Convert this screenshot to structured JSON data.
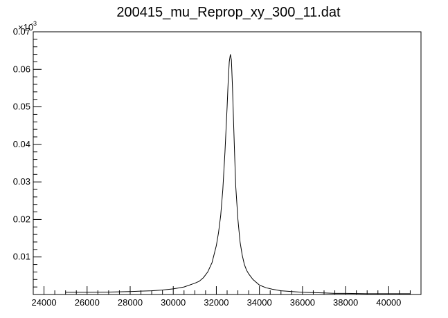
{
  "chart_data": {
    "type": "line",
    "title": "200415_mu_Reprop_xy_300_11.dat",
    "xlabel": "",
    "ylabel": "",
    "xlim": [
      23500,
      41500
    ],
    "ylim": [
      0,
      0.07
    ],
    "y_multiplier": {
      "base": "×10",
      "exponent": "-3"
    },
    "grid": false,
    "legend": "none",
    "x_ticks": [
      24000,
      26000,
      28000,
      30000,
      32000,
      34000,
      36000,
      38000,
      40000
    ],
    "x_tick_labels": [
      "24000",
      "26000",
      "28000",
      "30000",
      "32000",
      "34000",
      "36000",
      "38000",
      "40000"
    ],
    "y_ticks": [
      0.01,
      0.02,
      0.03,
      0.04,
      0.05,
      0.06,
      0.07
    ],
    "y_tick_labels": [
      "0.01",
      "0.02",
      "0.03",
      "0.04",
      "0.05",
      "0.06",
      "0.07"
    ],
    "series": [
      {
        "x": [
          25000,
          26000,
          27000,
          28000,
          28500,
          29000,
          29500,
          30000,
          30500,
          31000,
          31200,
          31400,
          31600,
          31800,
          32000,
          32100,
          32200,
          32300,
          32400,
          32500,
          32550,
          32600,
          32650,
          32700,
          32750,
          32800,
          32850,
          32900,
          33000,
          33100,
          33200,
          33300,
          33400,
          33500,
          33700,
          34000,
          34300,
          34600,
          35000,
          35500,
          36000,
          36500,
          37000,
          37500,
          38000,
          39000,
          40000,
          41000
        ],
        "y": [
          0.0006,
          0.0006,
          0.00065,
          0.0008,
          0.0009,
          0.001,
          0.0012,
          0.0015,
          0.002,
          0.003,
          0.0035,
          0.0045,
          0.006,
          0.0085,
          0.013,
          0.0165,
          0.021,
          0.028,
          0.038,
          0.05,
          0.057,
          0.062,
          0.064,
          0.0625,
          0.055,
          0.046,
          0.037,
          0.029,
          0.02,
          0.014,
          0.0105,
          0.008,
          0.0065,
          0.0055,
          0.004,
          0.0025,
          0.0018,
          0.0014,
          0.001,
          0.0008,
          0.0006,
          0.0005,
          0.0004,
          0.0003,
          0.0003,
          0.0002,
          0.0002,
          0.0002
        ],
        "color": "#000000"
      }
    ]
  }
}
